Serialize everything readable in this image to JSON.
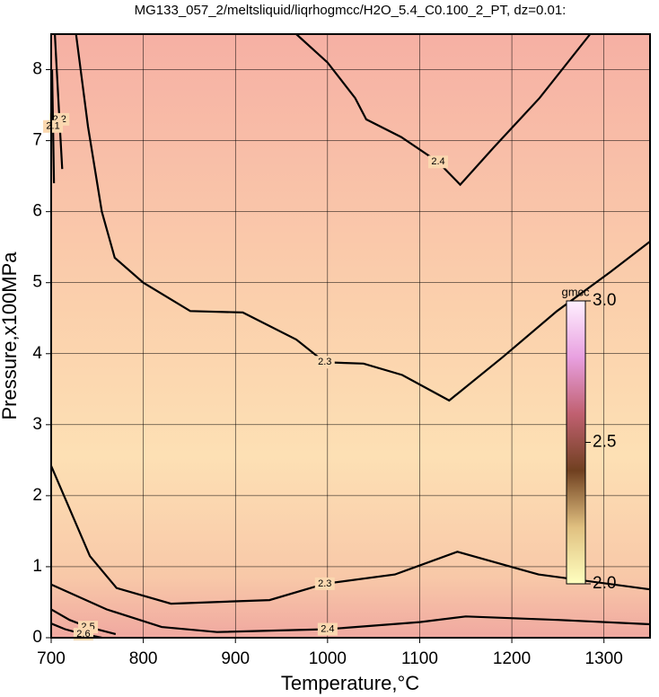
{
  "chart_data": {
    "type": "contour",
    "title": "MG133_057_2/meltsliquid/liqrhogmcc/H2O_5.4_C0.100_2_PT, dz=0.01:",
    "xlabel": "Temperature,°C",
    "ylabel": "Pressure,x100MPa",
    "xlim": [
      700,
      1350
    ],
    "ylim": [
      0,
      8.5
    ],
    "xticks": [
      700,
      800,
      900,
      1000,
      1100,
      1200,
      1300
    ],
    "yticks": [
      0,
      1,
      2,
      3,
      4,
      5,
      6,
      7,
      8
    ],
    "grid": true,
    "contours": [
      {
        "level": 2.4,
        "x": [
          966,
          1000,
          1030,
          1042,
          1080,
          1120,
          1144,
          1180,
          1230,
          1285
        ],
        "y": [
          8.5,
          8.1,
          7.6,
          7.3,
          7.05,
          6.7,
          6.38,
          6.9,
          7.6,
          8.5
        ]
      },
      {
        "level": 2.3,
        "x": [
          727,
          740,
          755,
          769,
          800,
          851,
          908,
          966,
          997,
          1039,
          1081,
          1132,
          1190,
          1249,
          1307,
          1350
        ],
        "y": [
          8.5,
          7.2,
          6.0,
          5.35,
          5.0,
          4.6,
          4.58,
          4.2,
          3.88,
          3.86,
          3.7,
          3.34,
          3.95,
          4.6,
          5.15,
          5.58
        ]
      },
      {
        "level": 2.3,
        "x": [
          700,
          742,
          771,
          830,
          937,
          997,
          1073,
          1141,
          1229,
          1350
        ],
        "y": [
          2.42,
          1.15,
          0.7,
          0.48,
          0.53,
          0.76,
          0.89,
          1.21,
          0.89,
          0.68
        ]
      },
      {
        "level": 2.4,
        "x": [
          700,
          760,
          820,
          880,
          1000,
          1100,
          1150,
          1250,
          1350
        ],
        "y": [
          0.75,
          0.4,
          0.15,
          0.08,
          0.12,
          0.22,
          0.3,
          0.25,
          0.19
        ]
      },
      {
        "level": 2.2,
        "x": [
          704,
          706,
          709,
          712
        ],
        "y": [
          8.5,
          8.0,
          7.3,
          6.6
        ]
      },
      {
        "level": 2.1,
        "x": [
          701,
          702,
          703
        ],
        "y": [
          8.0,
          7.2,
          6.4
        ]
      },
      {
        "level": 2.5,
        "x": [
          700,
          720,
          740,
          770
        ],
        "y": [
          0.4,
          0.25,
          0.15,
          0.05
        ]
      },
      {
        "level": 2.6,
        "x": [
          700,
          715,
          735,
          755
        ],
        "y": [
          0.2,
          0.12,
          0.05,
          0.0
        ]
      }
    ],
    "colorbar": {
      "label": "gmcc",
      "lim": [
        2.0,
        3.0
      ],
      "ticks": [
        {
          "value": 3.0,
          "label": "3.0"
        },
        {
          "value": 2.5,
          "label": "2.5"
        },
        {
          "value": 2.0,
          "label": "2.0"
        }
      ]
    }
  }
}
